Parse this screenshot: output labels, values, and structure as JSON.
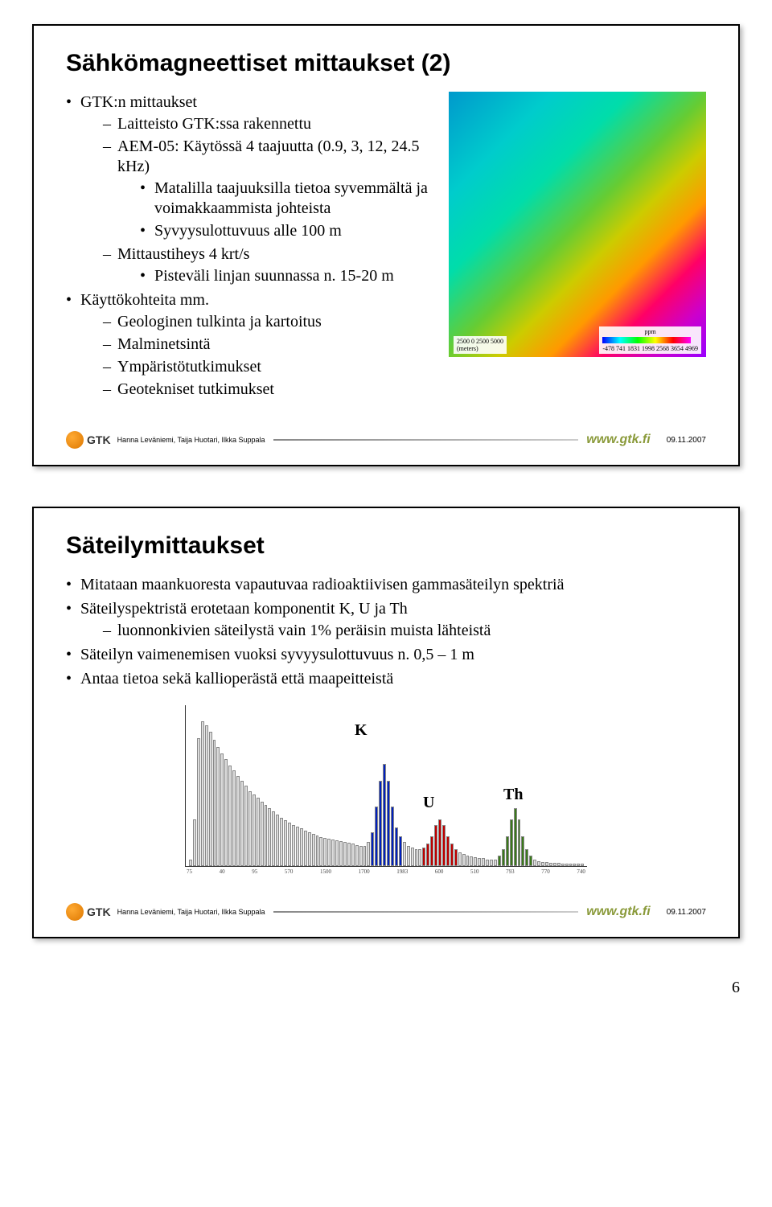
{
  "slide1": {
    "title": "Sähkömagneettiset mittaukset (2)",
    "b1_0": "GTK:n mittaukset",
    "b2_0": "Laitteisto GTK:ssa rakennettu",
    "b2_1": "AEM-05: Käytössä 4 taajuutta (0.9, 3, 12, 24.5 kHz)",
    "b3_0": "Matalilla taajuuksilla tietoa syvemmältä ja voimakkaammista johteista",
    "b3_1": "Syvyysulottuvuus alle 100 m",
    "b2_2": "Mittaustiheys 4 krt/s",
    "b3_2": "Pisteväli linjan suunnassa n. 15-20 m",
    "b1_1": "Käyttökohteita mm.",
    "b2_3": "Geologinen tulkinta ja kartoitus",
    "b2_4": "Malminetsintä",
    "b2_5": "Ympäristötutkimukset",
    "b2_6": "Geotekniset tutkimukset",
    "map_scale": "2500  0  2500  5000",
    "map_scale_unit": "(meters)",
    "map_legend_title": "ppm",
    "map_legend_vals": "-478 741 1831 1998 2568 3654 4969",
    "authors": "Hanna Leväniemi, Taija Huotari, Ilkka Suppala",
    "url": "www.gtk.fi",
    "date": "09.11.2007",
    "logo": "GTK"
  },
  "slide2": {
    "title": "Säteilymittaukset",
    "b1_0": "Mitataan maankuoresta vapautuvaa radioaktiivisen gammasäteilyn spektriä",
    "b1_1": "Säteilyspektristä erotetaan komponentit K, U ja Th",
    "b2_0": "luonnonkivien säteilystä vain 1% peräisin muista lähteistä",
    "b1_2": "Säteilyn vaimenemisen vuoksi syvyysulottuvuus n. 0,5 – 1 m",
    "b1_3": "Antaa tietoa sekä kallioperästä että maapeitteistä",
    "peak_k": "K",
    "peak_u": "U",
    "peak_th": "Th",
    "authors": "Hanna Leväniemi, Taija Huotari, Ilkka Suppala",
    "url": "www.gtk.fi",
    "date": "09.11.2007",
    "logo": "GTK",
    "xticks": [
      "75",
      "40",
      "95",
      "570",
      "1500",
      "1700",
      "1983",
      "600",
      "510",
      "793",
      "770",
      "740"
    ]
  },
  "spectrum": {
    "heights": [
      8,
      55,
      150,
      170,
      165,
      158,
      148,
      140,
      132,
      126,
      118,
      112,
      106,
      100,
      94,
      88,
      84,
      80,
      76,
      72,
      68,
      64,
      60,
      57,
      54,
      51,
      48,
      46,
      44,
      42,
      40,
      38,
      36,
      34,
      33,
      32,
      31,
      30,
      29,
      28,
      27,
      26,
      25,
      24,
      24,
      28,
      40,
      70,
      100,
      120,
      100,
      70,
      45,
      35,
      28,
      24,
      22,
      20,
      20,
      22,
      26,
      35,
      48,
      55,
      48,
      35,
      26,
      20,
      16,
      14,
      12,
      11,
      10,
      9,
      9,
      8,
      8,
      8,
      12,
      20,
      35,
      55,
      68,
      55,
      35,
      20,
      12,
      8,
      6,
      5,
      5,
      4,
      4,
      4,
      3,
      3,
      3,
      3,
      3,
      3
    ],
    "k_range": [
      46,
      53
    ],
    "u_range": [
      59,
      67
    ],
    "th_range": [
      78,
      86
    ],
    "k_color": "#0020c0",
    "u_color": "#c00000",
    "th_color": "#3a7a1a"
  },
  "page_num": "6"
}
